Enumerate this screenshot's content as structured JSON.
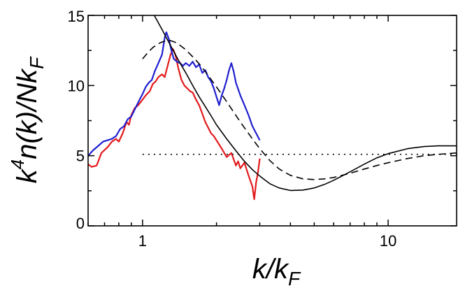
{
  "chart_data": {
    "type": "line",
    "xlabel": "k/k_F",
    "ylabel": "k^4 n(k)/N k_F",
    "x_scale": "log",
    "xlim": [
      0.6,
      19.0
    ],
    "ylim": [
      0,
      15
    ],
    "x_ticks": [
      1,
      10
    ],
    "y_ticks": [
      0,
      5,
      10,
      15
    ],
    "grid": false,
    "legend": "none",
    "series": [
      {
        "color": "#e31a1c",
        "style": "solid",
        "points": [
          [
            0.6,
            4.4
          ],
          [
            0.62,
            4.2
          ],
          [
            0.65,
            4.3
          ],
          [
            0.68,
            5.2
          ],
          [
            0.7,
            5.4
          ],
          [
            0.72,
            5.6
          ],
          [
            0.75,
            6.0
          ],
          [
            0.78,
            6.2
          ],
          [
            0.8,
            6.0
          ],
          [
            0.83,
            6.6
          ],
          [
            0.86,
            7.4
          ],
          [
            0.88,
            7.2
          ],
          [
            0.9,
            7.9
          ],
          [
            0.93,
            8.4
          ],
          [
            0.96,
            8.6
          ],
          [
            1.0,
            9.0
          ],
          [
            1.03,
            9.3
          ],
          [
            1.07,
            9.6
          ],
          [
            1.1,
            10.1
          ],
          [
            1.13,
            10.3
          ],
          [
            1.16,
            10.6
          ],
          [
            1.2,
            10.8
          ],
          [
            1.23,
            10.6
          ],
          [
            1.26,
            11.3
          ],
          [
            1.3,
            12.2
          ],
          [
            1.33,
            12.6
          ],
          [
            1.36,
            12.2
          ],
          [
            1.4,
            11.2
          ],
          [
            1.44,
            10.4
          ],
          [
            1.48,
            10.0
          ],
          [
            1.52,
            9.8
          ],
          [
            1.56,
            9.6
          ],
          [
            1.6,
            9.5
          ],
          [
            1.65,
            9.0
          ],
          [
            1.7,
            8.6
          ],
          [
            1.75,
            8.0
          ],
          [
            1.8,
            7.4
          ],
          [
            1.85,
            7.0
          ],
          [
            1.9,
            6.6
          ],
          [
            1.95,
            6.4
          ],
          [
            2.0,
            6.1
          ],
          [
            2.05,
            5.8
          ],
          [
            2.1,
            5.5
          ],
          [
            2.15,
            5.2
          ],
          [
            2.2,
            4.9
          ],
          [
            2.3,
            5.2
          ],
          [
            2.4,
            4.3
          ],
          [
            2.45,
            4.6
          ],
          [
            2.5,
            4.1
          ],
          [
            2.6,
            4.5
          ],
          [
            2.7,
            3.6
          ],
          [
            2.8,
            2.8
          ],
          [
            2.85,
            1.9
          ],
          [
            2.9,
            3.1
          ],
          [
            2.95,
            3.8
          ],
          [
            3.0,
            4.8
          ]
        ]
      },
      {
        "color": "#1f1fd1",
        "style": "solid",
        "points": [
          [
            0.6,
            5.0
          ],
          [
            0.63,
            5.4
          ],
          [
            0.66,
            5.7
          ],
          [
            0.69,
            6.0
          ],
          [
            0.72,
            6.1
          ],
          [
            0.75,
            6.2
          ],
          [
            0.78,
            6.4
          ],
          [
            0.81,
            6.9
          ],
          [
            0.84,
            7.1
          ],
          [
            0.87,
            7.6
          ],
          [
            0.9,
            7.8
          ],
          [
            0.93,
            8.3
          ],
          [
            0.96,
            8.8
          ],
          [
            1.0,
            9.4
          ],
          [
            1.03,
            9.9
          ],
          [
            1.06,
            10.2
          ],
          [
            1.09,
            10.4
          ],
          [
            1.12,
            11.0
          ],
          [
            1.16,
            11.6
          ],
          [
            1.2,
            12.2
          ],
          [
            1.23,
            13.4
          ],
          [
            1.25,
            13.8
          ],
          [
            1.28,
            13.3
          ],
          [
            1.31,
            12.5
          ],
          [
            1.34,
            11.9
          ],
          [
            1.38,
            11.7
          ],
          [
            1.42,
            11.6
          ],
          [
            1.46,
            11.4
          ],
          [
            1.5,
            11.6
          ],
          [
            1.55,
            11.4
          ],
          [
            1.6,
            11.7
          ],
          [
            1.65,
            11.3
          ],
          [
            1.7,
            11.5
          ],
          [
            1.75,
            10.9
          ],
          [
            1.8,
            11.1
          ],
          [
            1.85,
            10.6
          ],
          [
            1.9,
            10.3
          ],
          [
            1.95,
            9.8
          ],
          [
            2.0,
            9.2
          ],
          [
            2.05,
            8.6
          ],
          [
            2.1,
            9.3
          ],
          [
            2.15,
            9.8
          ],
          [
            2.2,
            10.4
          ],
          [
            2.25,
            11.1
          ],
          [
            2.3,
            11.6
          ],
          [
            2.35,
            11.0
          ],
          [
            2.4,
            10.2
          ],
          [
            2.5,
            9.3
          ],
          [
            2.6,
            8.6
          ],
          [
            2.7,
            7.9
          ],
          [
            2.8,
            7.1
          ],
          [
            2.9,
            6.6
          ],
          [
            3.0,
            6.1
          ]
        ]
      },
      {
        "color": "#000000",
        "style": "solid",
        "points": [
          [
            1.1,
            15.2
          ],
          [
            1.2,
            14.0
          ],
          [
            1.3,
            12.85
          ],
          [
            1.4,
            11.8
          ],
          [
            1.5,
            10.9
          ],
          [
            1.6,
            10.0
          ],
          [
            1.7,
            9.2
          ],
          [
            1.8,
            8.5
          ],
          [
            1.9,
            7.85
          ],
          [
            2.0,
            7.2
          ],
          [
            2.2,
            6.2
          ],
          [
            2.4,
            5.35
          ],
          [
            2.6,
            4.6
          ],
          [
            2.8,
            4.0
          ],
          [
            3.0,
            3.55
          ],
          [
            3.3,
            3.0
          ],
          [
            3.6,
            2.7
          ],
          [
            4.0,
            2.52
          ],
          [
            4.5,
            2.55
          ],
          [
            5.0,
            2.7
          ],
          [
            5.5,
            2.95
          ],
          [
            6.0,
            3.25
          ],
          [
            7.0,
            3.85
          ],
          [
            8.0,
            4.4
          ],
          [
            9.0,
            4.85
          ],
          [
            10.0,
            5.15
          ],
          [
            12.0,
            5.5
          ],
          [
            14.0,
            5.65
          ],
          [
            16.0,
            5.7
          ],
          [
            19.0,
            5.7
          ]
        ]
      },
      {
        "color": "#000000",
        "style": "dashed",
        "points": [
          [
            1.0,
            11.9
          ],
          [
            1.05,
            12.35
          ],
          [
            1.1,
            12.7
          ],
          [
            1.15,
            12.95
          ],
          [
            1.2,
            13.1
          ],
          [
            1.25,
            13.2
          ],
          [
            1.3,
            13.2
          ],
          [
            1.35,
            13.1
          ],
          [
            1.4,
            12.95
          ],
          [
            1.5,
            12.55
          ],
          [
            1.6,
            12.05
          ],
          [
            1.7,
            11.55
          ],
          [
            1.8,
            11.0
          ],
          [
            2.0,
            9.9
          ],
          [
            2.2,
            8.85
          ],
          [
            2.5,
            7.4
          ],
          [
            2.8,
            6.2
          ],
          [
            3.0,
            5.5
          ],
          [
            3.3,
            4.65
          ],
          [
            3.6,
            4.05
          ],
          [
            4.0,
            3.6
          ],
          [
            4.5,
            3.35
          ],
          [
            5.0,
            3.3
          ],
          [
            5.5,
            3.35
          ],
          [
            6.0,
            3.45
          ],
          [
            7.0,
            3.75
          ],
          [
            8.0,
            4.05
          ],
          [
            9.0,
            4.3
          ],
          [
            10.0,
            4.5
          ],
          [
            12.0,
            4.8
          ],
          [
            14.0,
            5.0
          ],
          [
            16.0,
            5.1
          ],
          [
            19.0,
            5.2
          ]
        ]
      },
      {
        "color": "#000000",
        "style": "dotted",
        "points": [
          [
            1.0,
            5.1
          ],
          [
            19.0,
            5.1
          ]
        ]
      }
    ]
  }
}
